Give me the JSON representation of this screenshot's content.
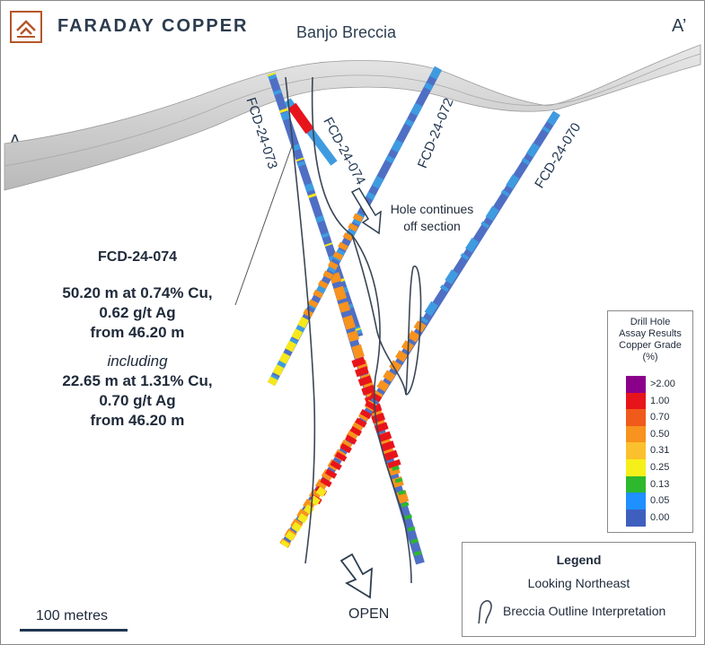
{
  "brand": {
    "name": "FARADAY COPPER",
    "color": "#b5562a"
  },
  "section": {
    "title": "Banjo Breccia",
    "start_label": "A",
    "end_label": "A’"
  },
  "holes": [
    {
      "id": "FCD-24-073"
    },
    {
      "id": "FCD-24-074"
    },
    {
      "id": "FCD-24-072"
    },
    {
      "id": "FCD-24-070"
    }
  ],
  "note": {
    "line1": "Hole continues",
    "line2": "off section"
  },
  "callout": {
    "title": "FCD-24-074",
    "line1": "50.20 m at 0.74% Cu,",
    "line2": "0.62 g/t Ag",
    "line3": "from 46.20 m",
    "including": "including",
    "line4": "22.65 m at 1.31% Cu,",
    "line5": "0.70 g/t Ag",
    "line6": "from 46.20 m"
  },
  "grade_legend": {
    "title_line1": "Drill Hole",
    "title_line2": "Assay Results",
    "title_line3": "Copper Grade",
    "title_line4": "(%)",
    "bins": [
      {
        "label": ">2.00",
        "color": "#8b008b"
      },
      {
        "label": "1.00",
        "color": "#e8141b"
      },
      {
        "label": "0.70",
        "color": "#f05a1a"
      },
      {
        "label": "0.50",
        "color": "#f7931e"
      },
      {
        "label": "0.31",
        "color": "#fbc02d"
      },
      {
        "label": "0.25",
        "color": "#f6f01a"
      },
      {
        "label": "0.13",
        "color": "#2db82d"
      },
      {
        "label": "0.05",
        "color": "#1e90ff"
      },
      {
        "label": "0.00",
        "color": "#3f5fbf"
      }
    ]
  },
  "legend": {
    "title": "Legend",
    "orientation": "Looking Northeast",
    "breccia": "Breccia Outline Interpretation",
    "breccia_icon": "breccia-outline-icon"
  },
  "scale": {
    "label": "100 metres"
  },
  "open_label": "OPEN"
}
